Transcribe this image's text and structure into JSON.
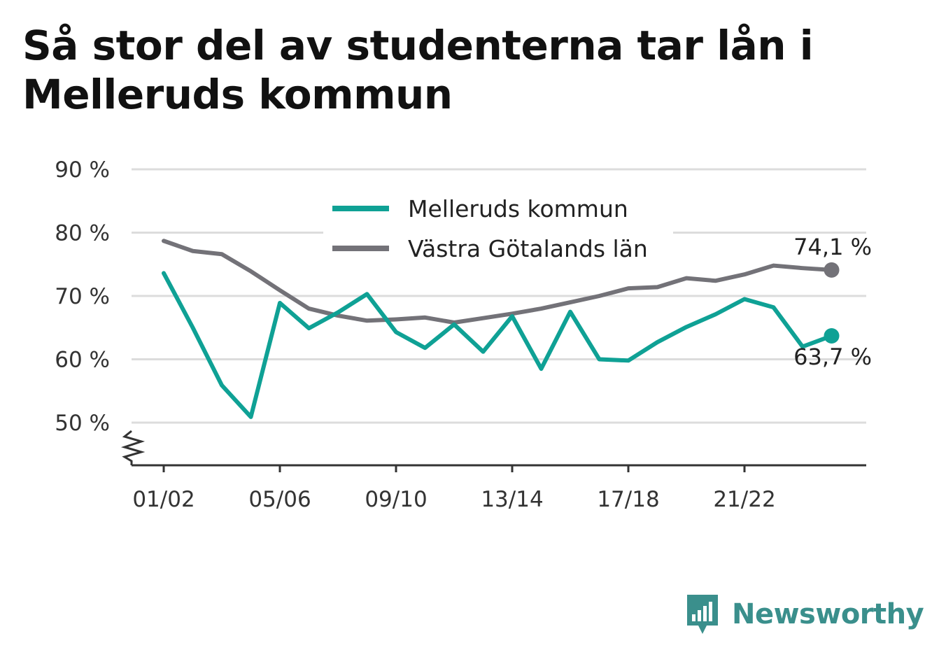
{
  "title": "Så stor del av studenterna tar lån i Melleruds kommun",
  "brand": {
    "name": "Newsworthy",
    "color": "#3a8f8c",
    "icon": "bar-chart-logo-icon"
  },
  "chart_data": {
    "type": "line",
    "title": "Så stor del av studenterna tar lån i Melleruds kommun",
    "xlabel": "",
    "ylabel": "",
    "ylim": [
      43,
      90
    ],
    "yticks": [
      50,
      60,
      70,
      80,
      90
    ],
    "ytick_labels": [
      "50 %",
      "60 %",
      "70 %",
      "80 %",
      "90 %"
    ],
    "y_axis_break": true,
    "grid": true,
    "legend_position": "top-center",
    "x": [
      "01/02",
      "02/03",
      "03/04",
      "04/05",
      "05/06",
      "06/07",
      "07/08",
      "08/09",
      "09/10",
      "10/11",
      "11/12",
      "12/13",
      "13/14",
      "14/15",
      "15/16",
      "16/17",
      "17/18",
      "18/19",
      "19/20",
      "20/21",
      "21/22",
      "22/23",
      "23/24",
      "24/25"
    ],
    "xtick_labels": [
      "01/02",
      "05/06",
      "09/10",
      "13/14",
      "17/18",
      "21/22"
    ],
    "series": [
      {
        "name": "Melleruds kommun",
        "color": "#0fa195",
        "values": [
          73.6,
          65.0,
          55.9,
          50.9,
          68.9,
          64.9,
          67.4,
          70.3,
          64.3,
          61.8,
          65.5,
          61.2,
          66.8,
          58.5,
          67.5,
          60.0,
          59.8,
          62.7,
          65.1,
          67.1,
          69.5,
          68.2,
          62.0,
          63.7
        ],
        "end_label": "63,7 %"
      },
      {
        "name": "Västra Götalands län",
        "color": "#737278",
        "values": [
          78.7,
          77.1,
          76.6,
          73.9,
          70.9,
          68.0,
          66.9,
          66.1,
          66.3,
          66.6,
          65.8,
          66.5,
          67.2,
          68.0,
          69.0,
          70.0,
          71.2,
          71.4,
          72.8,
          72.4,
          73.4,
          74.8,
          74.4,
          74.1
        ],
        "end_label": "74,1 %"
      }
    ]
  }
}
